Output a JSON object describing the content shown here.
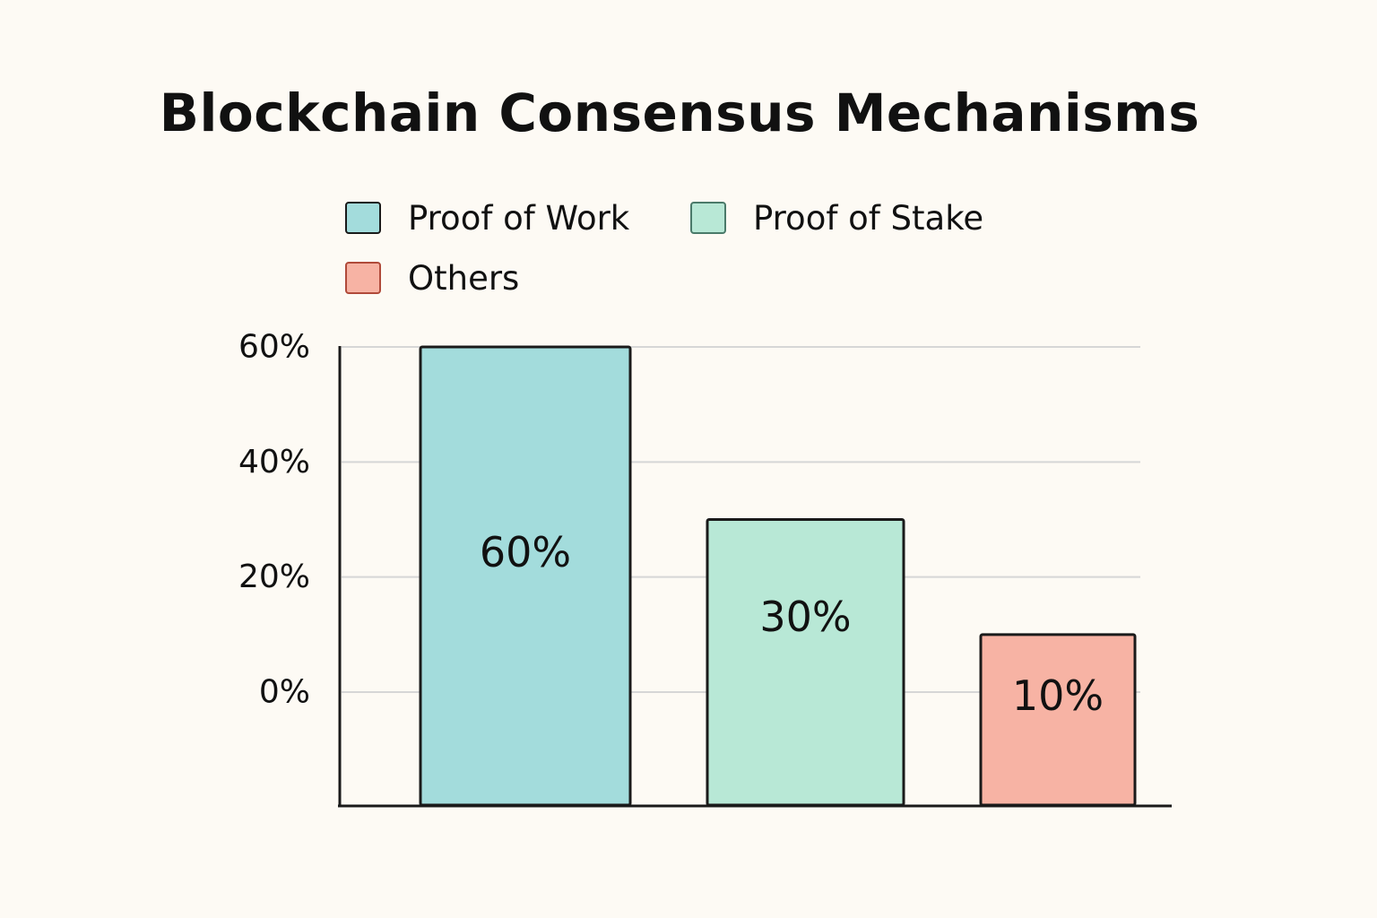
{
  "chart_data": {
    "type": "bar",
    "title": "Blockchain Consensus Mechanisms",
    "categories": [
      "Proof of Work",
      "Proof of Stake",
      "Others"
    ],
    "values": [
      60,
      30,
      10
    ],
    "data_labels": [
      "60%",
      "30%",
      "10%"
    ],
    "colors": [
      "#a3dcdc",
      "#b8e8d6",
      "#f7b3a4"
    ],
    "border_colors": [
      "#1a1a1a",
      "#4a7a6a",
      "#b04a3a"
    ],
    "yticks": [
      {
        "value": 0,
        "label": "0%"
      },
      {
        "value": 20,
        "label": "20%"
      },
      {
        "value": 40,
        "label": "40%"
      },
      {
        "value": 60,
        "label": "60%"
      }
    ],
    "ylim": [
      0,
      60
    ],
    "xlabel": "",
    "ylabel": "",
    "grid": true,
    "legend": {
      "placement": "top",
      "items": [
        {
          "label": "Proof of Work",
          "color": "#a3dcdc",
          "border": "#1a1a1a"
        },
        {
          "label": "Proof of Stake",
          "color": "#b8e8d6",
          "border": "#4a7a6a"
        },
        {
          "label": "Others",
          "color": "#f7b3a4",
          "border": "#b04a3a"
        }
      ]
    }
  }
}
